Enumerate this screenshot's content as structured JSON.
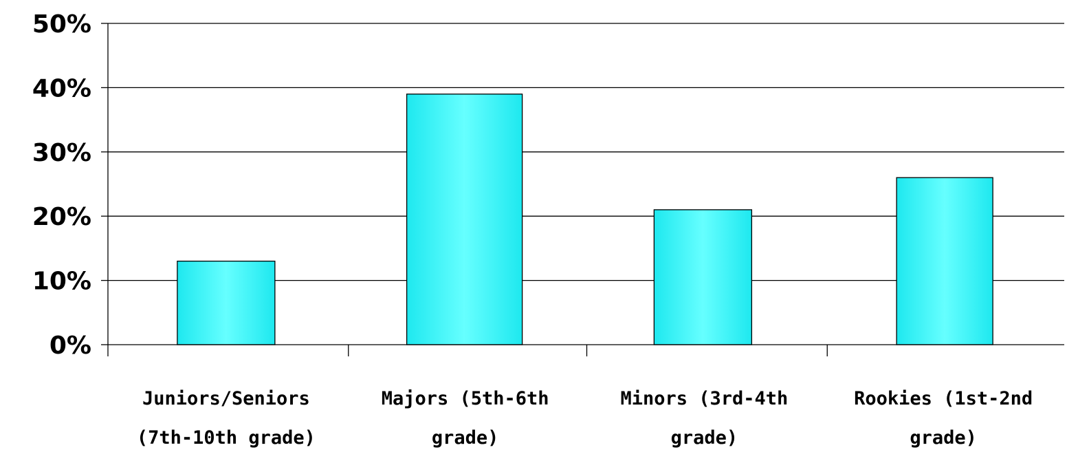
{
  "chart_data": {
    "type": "bar",
    "categories": [
      [
        "Juniors/Seniors",
        "(7th-10th grade)"
      ],
      [
        "Majors (5th-6th",
        "grade)"
      ],
      [
        "Minors (3rd-4th",
        "grade)"
      ],
      [
        "Rookies (1st-2nd",
        "grade)"
      ]
    ],
    "values": [
      13,
      39,
      21,
      26
    ],
    "title": "",
    "xlabel": "",
    "ylabel": "",
    "ylim": [
      0,
      50
    ],
    "yticks": [
      0,
      10,
      20,
      30,
      40,
      50
    ],
    "ytick_labels": [
      "0%",
      "10%",
      "20%",
      "30%",
      "40%",
      "50%"
    ],
    "grid": true,
    "legend": "none",
    "colors": {
      "bar_center": "#66ffff",
      "bar_edge": "#1ee8ef",
      "outline": "#000000",
      "grid": "#000000"
    }
  }
}
